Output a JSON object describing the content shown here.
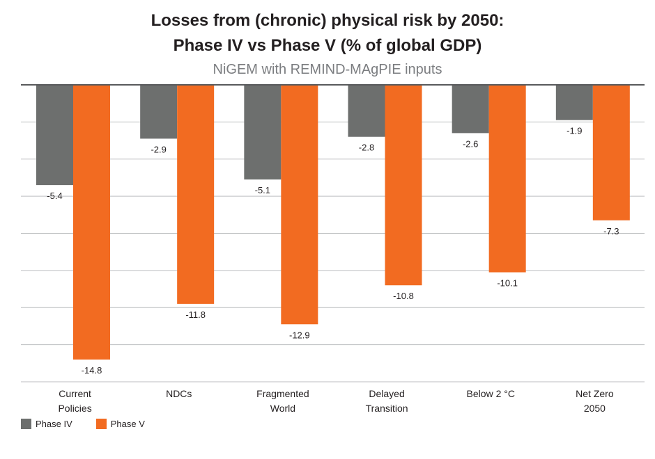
{
  "colors": {
    "phase_iv": "#6d6f6e",
    "phase_v": "#f26b21",
    "grid": "#bcbec0",
    "axis": "#58595b",
    "text": "#231f20",
    "subtitle": "#7b7d80"
  },
  "chart_data": {
    "type": "bar",
    "title_lines": [
      "Losses from (chronic) physical risk by 2050:",
      "Phase IV vs Phase V (% of global GDP)"
    ],
    "subtitle": "NiGEM with REMIND-MAgPIE inputs",
    "categories": [
      [
        "Current",
        "Policies"
      ],
      [
        "NDCs"
      ],
      [
        "Fragmented",
        "World"
      ],
      [
        "Delayed",
        "Transition"
      ],
      [
        "Below 2 °C"
      ],
      [
        "Net Zero",
        "2050"
      ]
    ],
    "series": [
      {
        "name": "Phase IV",
        "values": [
          -5.4,
          -2.9,
          -5.1,
          -2.8,
          -2.6,
          -1.9
        ]
      },
      {
        "name": "Phase V",
        "values": [
          -14.8,
          -11.8,
          -12.9,
          -10.8,
          -10.1,
          -7.3
        ]
      }
    ],
    "data_labels": [
      [
        "-5.4",
        "-2.9",
        "-5.1",
        "-2.8",
        "-2.6",
        "-1.9"
      ],
      [
        "-14.8",
        "-11.8",
        "-12.9",
        "-10.8",
        "-10.1",
        "-7.3"
      ]
    ],
    "ylim": [
      -16,
      0
    ],
    "grid_step": 2,
    "grid": true,
    "legend": "bottom-left",
    "xlabel": "",
    "ylabel": ""
  },
  "legend": {
    "items": [
      "Phase IV",
      "Phase V"
    ]
  }
}
